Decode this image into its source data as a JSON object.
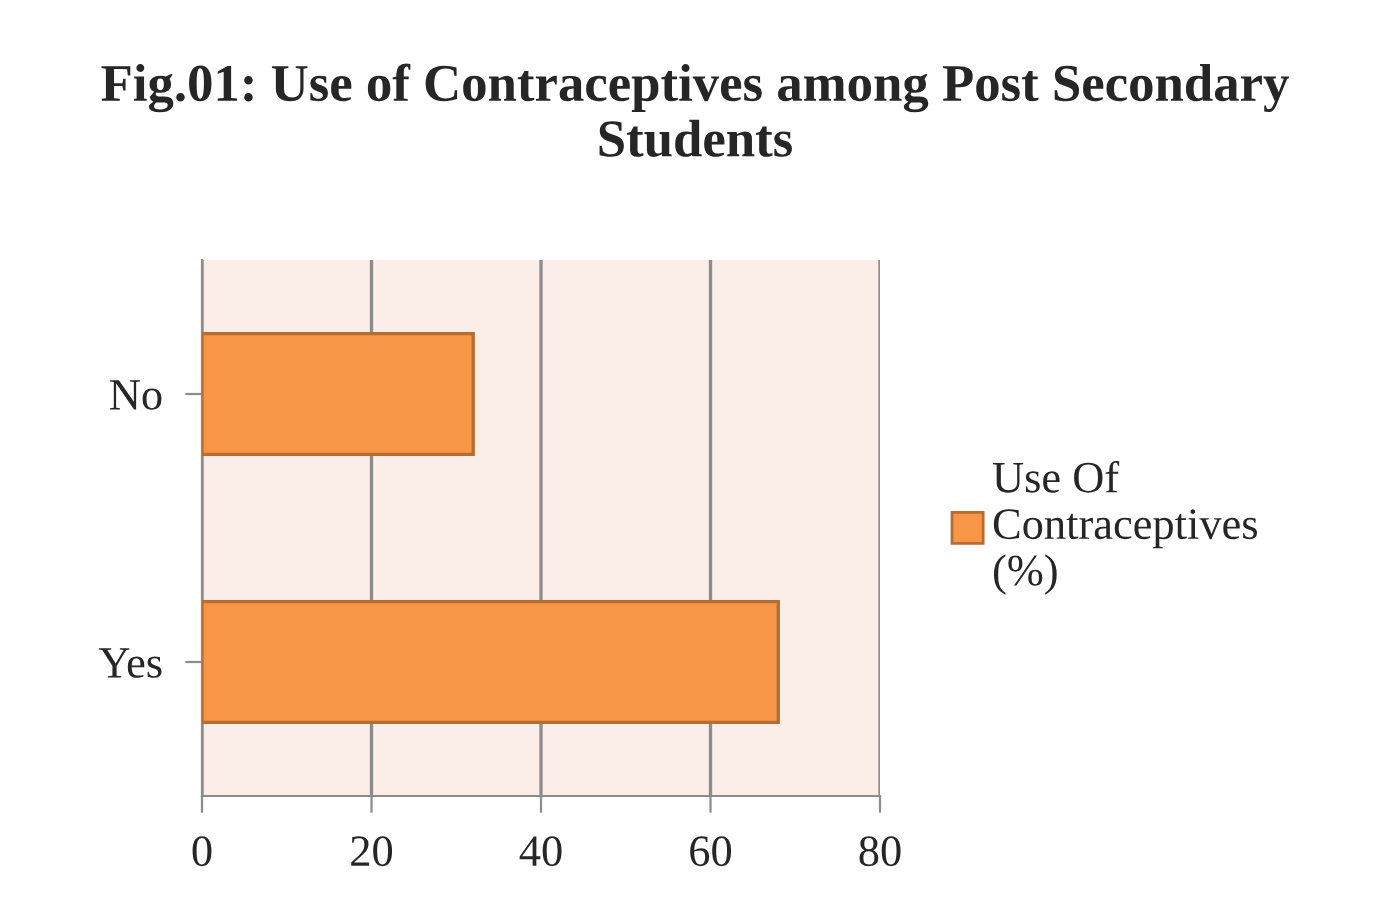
{
  "chart_data": {
    "type": "bar",
    "orientation": "horizontal",
    "title": "Fig.01: Use of Contraceptives among Post Secondary Students",
    "categories": [
      "No",
      "Yes"
    ],
    "series": [
      {
        "name": "Use Of Contraceptives (%)",
        "color": "#f79646",
        "values": [
          32,
          68
        ]
      }
    ],
    "xlim": [
      0,
      80
    ],
    "xticks": [
      0,
      20,
      40,
      60,
      80
    ],
    "grid": "x",
    "legend": "right"
  }
}
